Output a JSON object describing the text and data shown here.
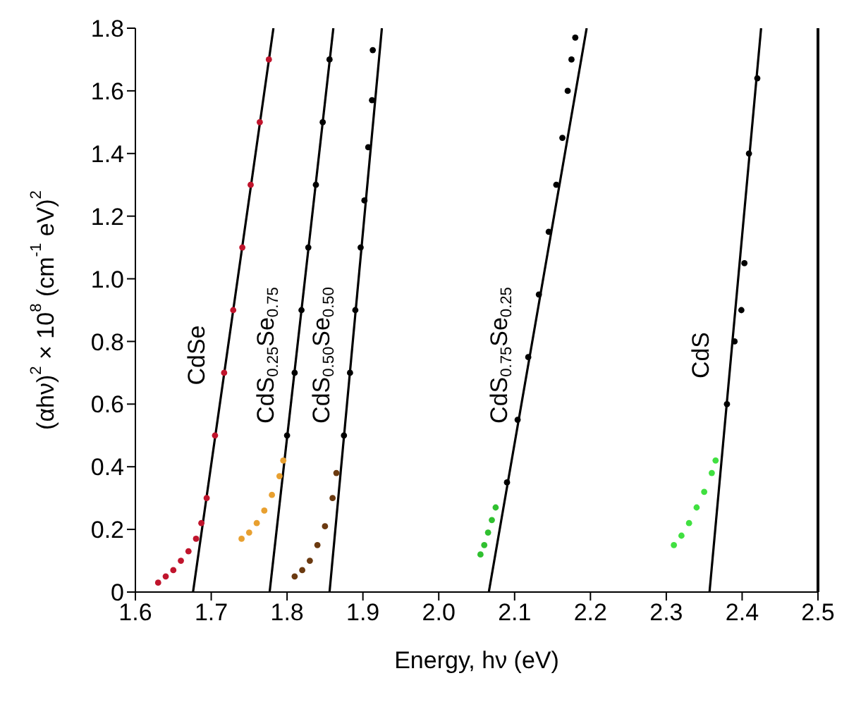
{
  "chart_data": {
    "type": "scatter",
    "xlabel": "Energy, hν (eV)",
    "ylabel": "(αhν)$^{2}$ × 10$^{8}$ (cm$^{-1}$ eV)$^{2}$",
    "xlim": [
      1.6,
      2.5
    ],
    "ylim": [
      0,
      1.8
    ],
    "xticks": [
      1.6,
      1.7,
      1.8,
      1.9,
      {
        "value": 2,
        "label": "2.0"
      },
      2.1,
      2.2,
      2.3,
      2.4,
      2.5
    ],
    "yticks": [
      0,
      0.2,
      0.4,
      0.6,
      0.8,
      {
        "value": 1,
        "label": "1.0"
      },
      1.2,
      1.4,
      1.6,
      1.8
    ],
    "grid": false,
    "legend": false,
    "marker": "circle",
    "series": [
      {
        "color": "#c0142c",
        "x": [
          1.63,
          1.64,
          1.65,
          1.66,
          1.67,
          1.68,
          1.687,
          1.694,
          1.705,
          1.717,
          1.729,
          1.741,
          1.752,
          1.764,
          1.776
        ],
        "values": [
          0.03,
          0.05,
          0.07,
          0.1,
          0.13,
          0.17,
          0.22,
          0.3,
          0.5,
          0.7,
          0.9,
          1.1,
          1.3,
          1.5,
          1.7
        ]
      },
      {
        "type": "line",
        "name": "CdSe",
        "color": "#000000",
        "marker": "none",
        "x": [
          1.676,
          1.782
        ],
        "values": [
          0,
          1.8
        ]
      },
      {
        "color": "#e8a030",
        "x": [
          1.74,
          1.75,
          1.76,
          1.77,
          1.78,
          1.79,
          1.795
        ],
        "values": [
          0.17,
          0.19,
          0.22,
          0.26,
          0.31,
          0.37,
          0.42
        ]
      },
      {
        "color": "#000000",
        "x": [
          1.8,
          1.81,
          1.819,
          1.828,
          1.838,
          1.847,
          1.856
        ],
        "values": [
          0.5,
          0.7,
          0.9,
          1.1,
          1.3,
          1.5,
          1.7
        ]
      },
      {
        "type": "line",
        "name": "CdS$_{0.25}$Se$_{0.75}$",
        "color": "#000000",
        "marker": "none",
        "x": [
          1.777,
          1.861
        ],
        "values": [
          0,
          1.8
        ]
      },
      {
        "color": "#6b3a10",
        "x": [
          1.81,
          1.82,
          1.83,
          1.84,
          1.85,
          1.86,
          1.865
        ],
        "values": [
          0.05,
          0.07,
          0.1,
          0.15,
          0.21,
          0.3,
          0.38
        ]
      },
      {
        "color": "#000000",
        "x": [
          1.875,
          1.883,
          1.89,
          1.897,
          1.902,
          1.907,
          1.912,
          1.913
        ],
        "values": [
          0.5,
          0.7,
          0.9,
          1.1,
          1.25,
          1.42,
          1.57,
          1.73
        ]
      },
      {
        "type": "line",
        "name": "CdS$_{0.50}$Se$_{0.50}$",
        "color": "#000000",
        "marker": "none",
        "x": [
          1.856,
          1.925
        ],
        "values": [
          0,
          1.8
        ]
      },
      {
        "color": "#30c030",
        "x": [
          2.055,
          2.06,
          2.065,
          2.07,
          2.075
        ],
        "values": [
          0.12,
          0.15,
          0.19,
          0.23,
          0.27
        ]
      },
      {
        "color": "#000000",
        "x": [
          2.09,
          2.104,
          2.118,
          2.132,
          2.145,
          2.155,
          2.163,
          2.17,
          2.175,
          2.18
        ],
        "values": [
          0.35,
          0.55,
          0.75,
          0.95,
          1.15,
          1.3,
          1.45,
          1.6,
          1.7,
          1.77
        ]
      },
      {
        "type": "line",
        "name": "CdS$_{0.75}$Se$_{0.25}$",
        "color": "#000000",
        "marker": "none",
        "x": [
          2.066,
          2.195
        ],
        "values": [
          0,
          1.8
        ]
      },
      {
        "color": "#40e040",
        "x": [
          2.31,
          2.32,
          2.33,
          2.34,
          2.35,
          2.36,
          2.365
        ],
        "values": [
          0.15,
          0.18,
          0.22,
          0.27,
          0.32,
          0.38,
          0.42
        ]
      },
      {
        "color": "#000000",
        "x": [
          2.38,
          2.39,
          2.399,
          2.403,
          2.409,
          2.42
        ],
        "values": [
          0.6,
          0.8,
          0.9,
          1.05,
          1.4,
          1.64
        ]
      },
      {
        "type": "line",
        "name": "CdS",
        "color": "#000000",
        "marker": "none",
        "x": [
          2.357,
          2.425
        ],
        "values": [
          0,
          1.8
        ]
      }
    ]
  }
}
